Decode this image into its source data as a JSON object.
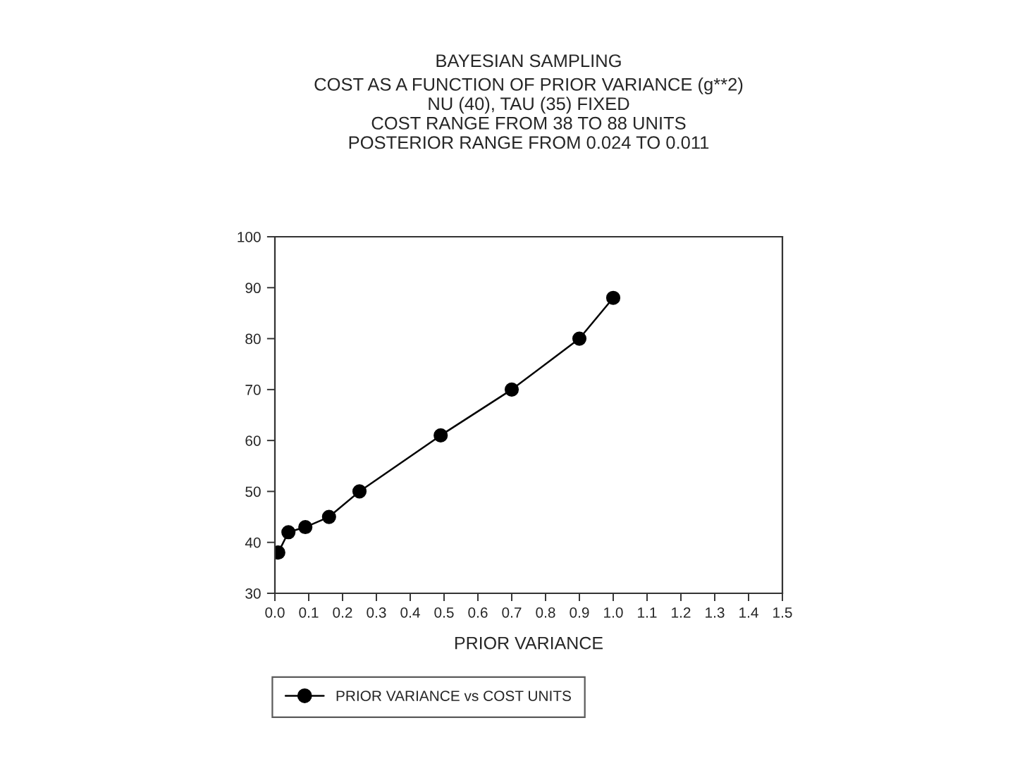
{
  "chart_data": {
    "type": "line",
    "title": "BAYESIAN SAMPLING",
    "subtitle": "COST AS A FUNCTION OF PRIOR VARIANCE (g**2)\nNU (40), TAU (35) FIXED\nCOST RANGE FROM 38 TO 88 UNITS\nPOSTERIOR RANGE FROM 0.024 TO 0.011",
    "xlabel": "PRIOR VARIANCE",
    "x": [
      0.01,
      0.04,
      0.09,
      0.16,
      0.25,
      0.49,
      0.7,
      0.9,
      1.0
    ],
    "series": [
      {
        "name": "PRIOR VARIANCE vs COST UNITS",
        "color": "#000000",
        "values": [
          38,
          42,
          43,
          45,
          50,
          61,
          70,
          80,
          88
        ]
      }
    ],
    "xlim": [
      0,
      1.5
    ],
    "xticks": [
      {
        "value": 0,
        "label": "0.0"
      },
      0.1,
      0.2,
      0.3,
      0.4,
      0.5,
      0.6,
      0.7,
      0.8,
      0.9,
      {
        "value": 1,
        "label": "1.0"
      },
      1.1,
      1.2,
      1.3,
      1.4,
      1.5
    ],
    "ylim": [
      30,
      100
    ],
    "yticks": [
      30,
      40,
      50,
      60,
      70,
      80,
      90,
      100
    ],
    "marker": "circle",
    "line_style": "solid",
    "grid": false,
    "legend": "bottom"
  }
}
